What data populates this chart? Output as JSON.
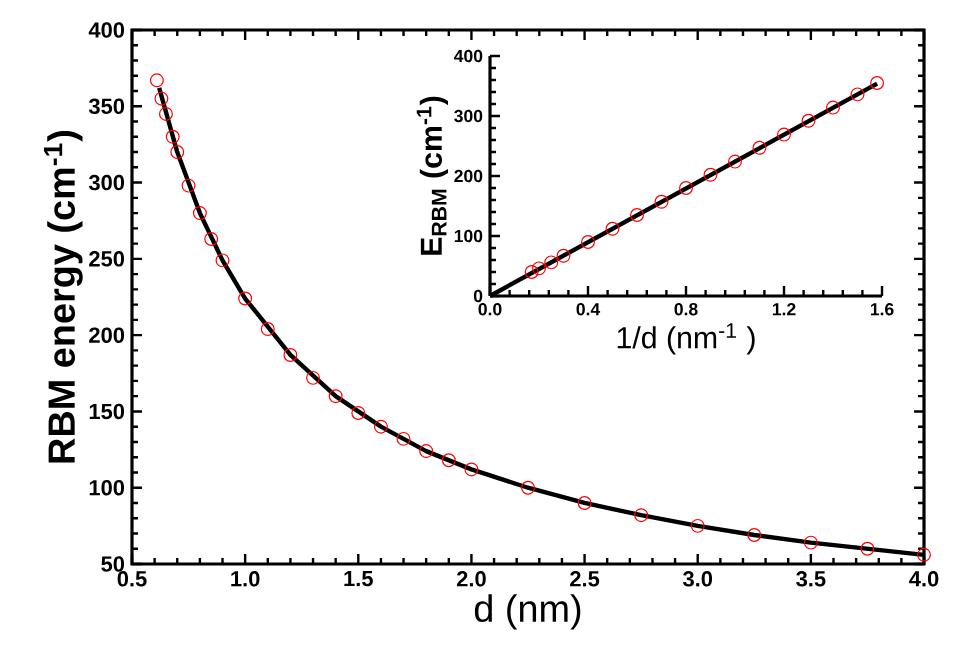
{
  "chart_data": [
    {
      "type": "scatter",
      "xlabel": "d   (nm)",
      "ylabel": "RBM  energy (cm$^{-1}$)",
      "xlim": [
        0.5,
        4.0
      ],
      "ylim": [
        50,
        400
      ],
      "xticks": [
        0.5,
        {
          "value": 1,
          "label": "1.0"
        },
        1.5,
        {
          "value": 2,
          "label": "2.0"
        },
        2.5,
        {
          "value": 3,
          "label": "3.0"
        },
        3.5,
        {
          "value": 4,
          "label": "4.0"
        }
      ],
      "yticks": [
        50,
        100,
        150,
        200,
        250,
        300,
        350,
        400
      ],
      "series": [
        {
          "marker": "circle",
          "color": "#ff0000",
          "x": [
            0.61,
            0.63,
            0.65,
            0.68,
            0.7,
            0.75,
            0.8,
            0.85,
            0.9,
            1.0,
            1.1,
            1.2,
            1.3,
            1.4,
            1.5,
            1.6,
            1.7,
            1.8,
            1.9,
            2.0,
            2.25,
            2.5,
            2.75,
            3.0,
            3.25,
            3.5,
            3.75,
            4.0
          ],
          "values": [
            367,
            355,
            345,
            330,
            320,
            298,
            280,
            263,
            249,
            224,
            204,
            187,
            172,
            160,
            149,
            140,
            132,
            124,
            118,
            112,
            100,
            90,
            82,
            75,
            69,
            64,
            60,
            56
          ]
        },
        {
          "type": "line",
          "marker": "none",
          "color": "#000000",
          "x": [
            0.62,
            0.7,
            0.8,
            0.9,
            1.0,
            1.2,
            1.4,
            1.6,
            1.8,
            2.0,
            2.25,
            2.5,
            2.75,
            3.0,
            3.25,
            3.5,
            3.75,
            4.0
          ],
          "values": [
            362,
            320,
            280,
            249,
            224,
            187,
            160,
            140,
            124,
            112,
            100,
            90,
            82,
            75,
            69,
            64,
            60,
            56
          ]
        }
      ]
    },
    {
      "type": "scatter",
      "xlabel": "1/d   (nm$^{-1}$ )",
      "ylabel": "E$_{RBM}$ (cm$^{-1}$)",
      "xlim": [
        0,
        1.6
      ],
      "ylim": [
        0,
        400
      ],
      "xticks": [
        {
          "value": 0,
          "label": "0.0"
        },
        0.4,
        0.8,
        1.2,
        1.6
      ],
      "yticks": [
        0,
        100,
        200,
        300,
        400
      ],
      "series": [
        {
          "marker": "circle",
          "color": "#ff0000",
          "x": [
            0.17,
            0.2,
            0.25,
            0.3,
            0.4,
            0.5,
            0.6,
            0.7,
            0.8,
            0.9,
            1.0,
            1.1,
            1.2,
            1.3,
            1.4,
            1.5,
            1.58
          ],
          "values": [
            40,
            46,
            56,
            67,
            90,
            112,
            135,
            157,
            180,
            202,
            224,
            247,
            269,
            292,
            314,
            336,
            355
          ]
        },
        {
          "type": "line",
          "marker": "none",
          "color": "#000000",
          "x": [
            0,
            1.58
          ],
          "values": [
            0,
            354
          ]
        }
      ]
    }
  ]
}
